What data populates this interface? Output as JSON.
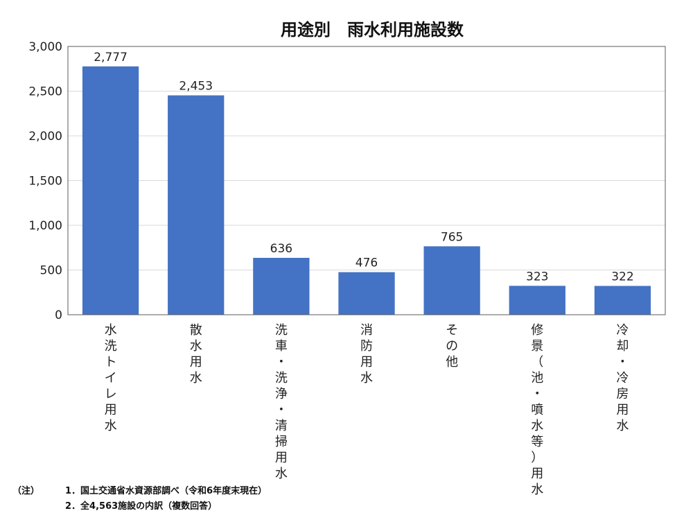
{
  "chart_data": {
    "type": "bar",
    "title": "用途別　雨水利用施設数",
    "categories": [
      "水洗トイレ用水",
      "散水用水",
      "洗車・洗浄・清掃用水",
      "消防用水",
      "その他",
      "修景（池・噴水等）用水",
      "冷却・冷房用水"
    ],
    "values": [
      2777,
      2453,
      636,
      476,
      765,
      323,
      322
    ],
    "value_labels": [
      "2,777",
      "2,453",
      "636",
      "476",
      "765",
      "323",
      "322"
    ],
    "ylim": [
      0,
      3000
    ],
    "yticks": [
      0,
      500,
      1000,
      1500,
      2000,
      2500,
      3000
    ],
    "ytick_labels": [
      "0",
      "500",
      "1,000",
      "1,500",
      "2,000",
      "2,500",
      "3,000"
    ],
    "grid": true,
    "bar_color": "#4472C4"
  },
  "notes": {
    "prefix": "（注）",
    "items": [
      "1．国土交通省水資源部調べ（令和6年度末現在）",
      "2．全4,563施設の内訳（複数回答）"
    ]
  }
}
